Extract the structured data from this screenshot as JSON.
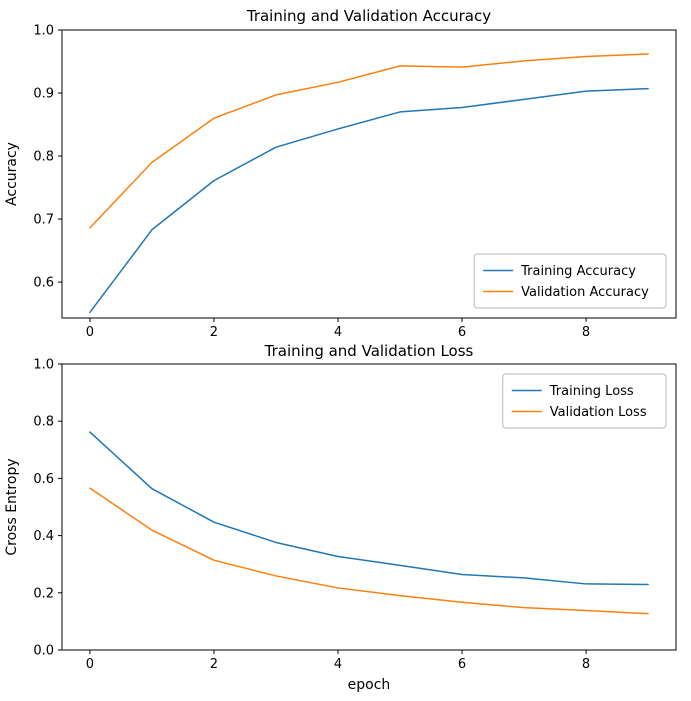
{
  "figure": {
    "background": "#ffffff",
    "text_color": "#000000",
    "spine_color": "#000000"
  },
  "chart_data": [
    {
      "type": "line",
      "title": "Training and Validation Accuracy",
      "xlabel": "",
      "ylabel": "Accuracy",
      "x": [
        0,
        1,
        2,
        3,
        4,
        5,
        6,
        7,
        8,
        9
      ],
      "series": [
        {
          "name": "Training Accuracy",
          "color": "#1f77b4",
          "values": [
            0.552,
            0.683,
            0.761,
            0.814,
            0.843,
            0.87,
            0.877,
            0.89,
            0.903,
            0.907
          ]
        },
        {
          "name": "Validation Accuracy",
          "color": "#ff7f0e",
          "values": [
            0.686,
            0.79,
            0.86,
            0.897,
            0.917,
            0.943,
            0.941,
            0.951,
            0.958,
            0.962
          ]
        }
      ],
      "xlim": [
        -0.45,
        9.45
      ],
      "ylim": [
        0.543,
        1.0
      ],
      "xticks": [
        0,
        2,
        4,
        6,
        8
      ],
      "xtick_labels": [
        "0",
        "2",
        "4",
        "6",
        "8"
      ],
      "yticks": [
        0.6,
        0.7,
        0.8,
        0.9,
        1.0
      ],
      "ytick_labels": [
        "0.6",
        "0.7",
        "0.8",
        "0.9",
        "1.0"
      ],
      "legend_position": "lower right",
      "legend_entries": [
        "Training Accuracy",
        "Validation Accuracy"
      ],
      "grid": false
    },
    {
      "type": "line",
      "title": "Training and Validation Loss",
      "xlabel": "epoch",
      "ylabel": "Cross Entropy",
      "x": [
        0,
        1,
        2,
        3,
        4,
        5,
        6,
        7,
        8,
        9
      ],
      "series": [
        {
          "name": "Training Loss",
          "color": "#1f77b4",
          "values": [
            0.762,
            0.564,
            0.447,
            0.376,
            0.327,
            0.296,
            0.264,
            0.252,
            0.231,
            0.229
          ]
        },
        {
          "name": "Validation Loss",
          "color": "#ff7f0e",
          "values": [
            0.566,
            0.419,
            0.314,
            0.259,
            0.217,
            0.19,
            0.167,
            0.148,
            0.138,
            0.127
          ]
        }
      ],
      "xlim": [
        -0.45,
        9.45
      ],
      "ylim": [
        0.0,
        1.0
      ],
      "xticks": [
        0,
        2,
        4,
        6,
        8
      ],
      "xtick_labels": [
        "0",
        "2",
        "4",
        "6",
        "8"
      ],
      "yticks": [
        0.0,
        0.2,
        0.4,
        0.6,
        0.8,
        1.0
      ],
      "ytick_labels": [
        "0.0",
        "0.2",
        "0.4",
        "0.6",
        "0.8",
        "1.0"
      ],
      "legend_position": "upper right",
      "legend_entries": [
        "Training Loss",
        "Validation Loss"
      ],
      "grid": false
    }
  ]
}
